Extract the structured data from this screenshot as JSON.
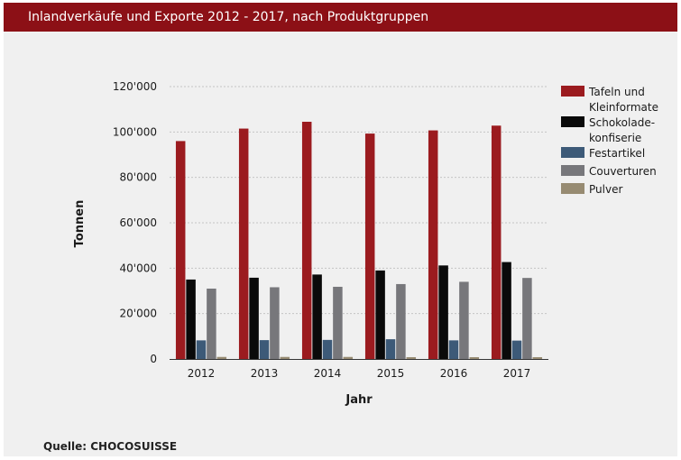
{
  "header": {
    "title": "Inlandverkäufe und Exporte 2012 - 2017, nach Produktgruppen"
  },
  "source": {
    "label": "Quelle: CHOCOSUISSE"
  },
  "chart_data": {
    "type": "bar",
    "title": "Inlandverkäufe und Exporte 2012 - 2017, nach Produktgruppen",
    "xlabel": "Jahr",
    "ylabel": "Tonnen",
    "categories": [
      "2012",
      "2013",
      "2014",
      "2015",
      "2016",
      "2017"
    ],
    "ylim": [
      0,
      120000
    ],
    "yticks": [
      0,
      20000,
      40000,
      60000,
      80000,
      100000,
      120000
    ],
    "ytick_labels": [
      "0",
      "20'000",
      "40'000",
      "60'000",
      "80'000",
      "100'000",
      "120'000"
    ],
    "grid": "horizontal dotted",
    "legend_position": "right",
    "series": [
      {
        "name": "Tafeln und Kleinformate",
        "legend_lines": [
          "Tafeln und",
          "Kleinformate"
        ],
        "color": "#9b1b1f",
        "values": [
          96000,
          101500,
          104500,
          99300,
          100700,
          102800
        ]
      },
      {
        "name": "Schokolade-konfiserie",
        "legend_lines": [
          "Schokolade-",
          "konfiserie"
        ],
        "color": "#0a0a0a",
        "values": [
          35000,
          35800,
          37200,
          39000,
          41200,
          42700
        ]
      },
      {
        "name": "Festartikel",
        "legend_lines": [
          "Festartikel"
        ],
        "color": "#3d5a78",
        "values": [
          8200,
          8300,
          8400,
          8700,
          8200,
          8100
        ]
      },
      {
        "name": "Couverturen",
        "legend_lines": [
          "Couverturen"
        ],
        "color": "#77777b",
        "values": [
          31000,
          31600,
          31800,
          33000,
          34000,
          35700
        ]
      },
      {
        "name": "Pulver",
        "legend_lines": [
          "Pulver"
        ],
        "color": "#978b72",
        "values": [
          900,
          900,
          900,
          800,
          800,
          800
        ]
      }
    ]
  }
}
